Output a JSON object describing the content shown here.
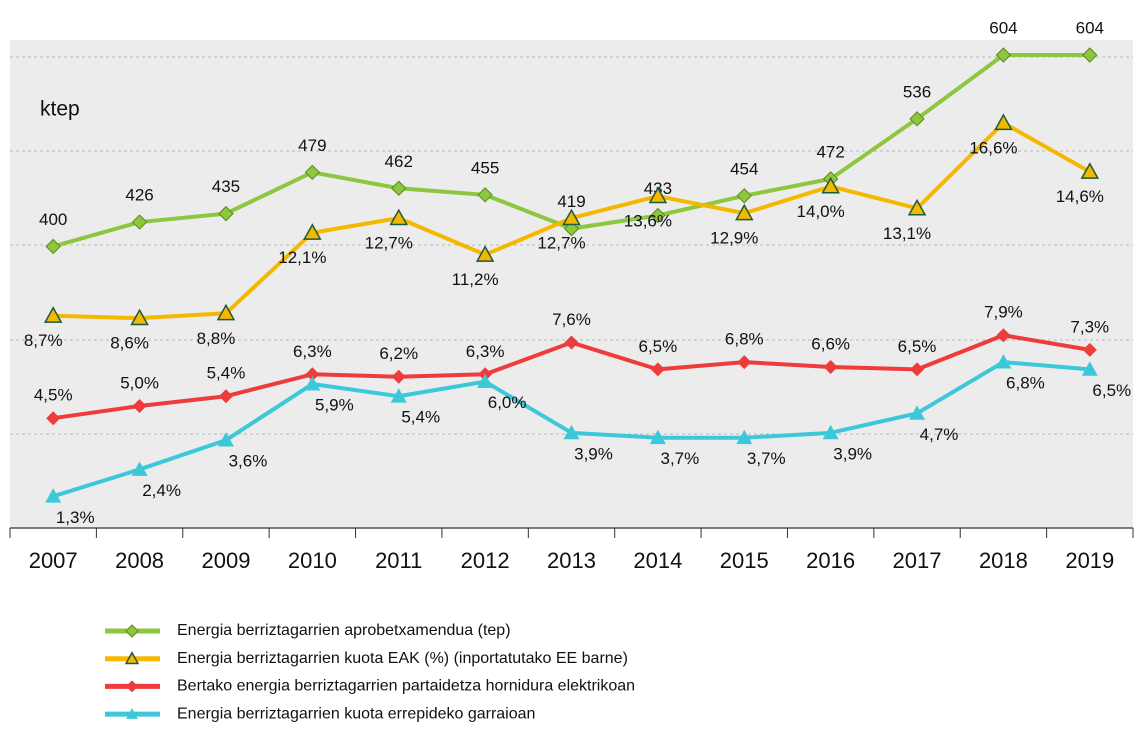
{
  "chart_data": {
    "type": "line",
    "y_label": "ktep",
    "categories": [
      "2007",
      "2008",
      "2009",
      "2010",
      "2011",
      "2012",
      "2013",
      "2014",
      "2015",
      "2016",
      "2017",
      "2018",
      "2019"
    ],
    "ylim": [
      100,
      620
    ],
    "y2lim": [
      0,
      20
    ],
    "grid": true,
    "legend": "bottom",
    "series": [
      {
        "name": "Energia berriztagarrien aprobetxamendua  (tep)",
        "color": "#8dc63f",
        "marker": "diamond",
        "values": [
          400,
          426,
          435,
          479,
          462,
          455,
          419,
          433,
          454,
          472,
          536,
          604,
          604
        ]
      },
      {
        "name": "Energia berriztagarrien kuota EAK (%) (inportatutako EE barne)",
        "color": "#f5b800",
        "marker": "triangle-open",
        "axis": "y2",
        "values": [
          8.7,
          8.6,
          8.8,
          12.1,
          12.7,
          11.2,
          12.7,
          13.6,
          12.9,
          14.0,
          13.1,
          16.6,
          14.6
        ],
        "value_labels": [
          "8,7%",
          "8,6%",
          "8,8%",
          "12,1%",
          "12,7%",
          "11,2%",
          "12,7%",
          "13,6%",
          "12,9%",
          "14,0%",
          "13,1%",
          "16,6%",
          "14,6%"
        ]
      },
      {
        "name": "Bertako energia berriztagarrien partaidetza hornidura elektrikoan",
        "color": "#ee3b3b",
        "marker": "diamond",
        "axis": "y2",
        "values": [
          4.5,
          5.0,
          5.4,
          6.3,
          6.2,
          6.3,
          7.6,
          6.5,
          6.8,
          6.6,
          6.5,
          7.9,
          7.3
        ],
        "value_labels": [
          "4,5%",
          "5,0%",
          "5,4%",
          "6,3%",
          "6,2%",
          "6,3%",
          "7,6%",
          "6,5%",
          "6,8%",
          "6,6%",
          "6,5%",
          "7,9%",
          "7,3%"
        ]
      },
      {
        "name": "Energia berriztagarrien kuota errepideko garraioan",
        "color": "#3cc8d8",
        "marker": "triangle",
        "axis": "y2",
        "values": [
          1.3,
          2.4,
          3.6,
          5.9,
          5.4,
          6.0,
          3.9,
          3.7,
          3.7,
          3.9,
          4.7,
          6.8,
          6.5
        ],
        "value_labels": [
          "1,3%",
          "2,4%",
          "3,6%",
          "5,9%",
          "5,4%",
          "6,0%",
          "3,9%",
          "3,7%",
          "3,7%",
          "3,9%",
          "4,7%",
          "6,8%",
          "6,5%"
        ]
      }
    ]
  }
}
